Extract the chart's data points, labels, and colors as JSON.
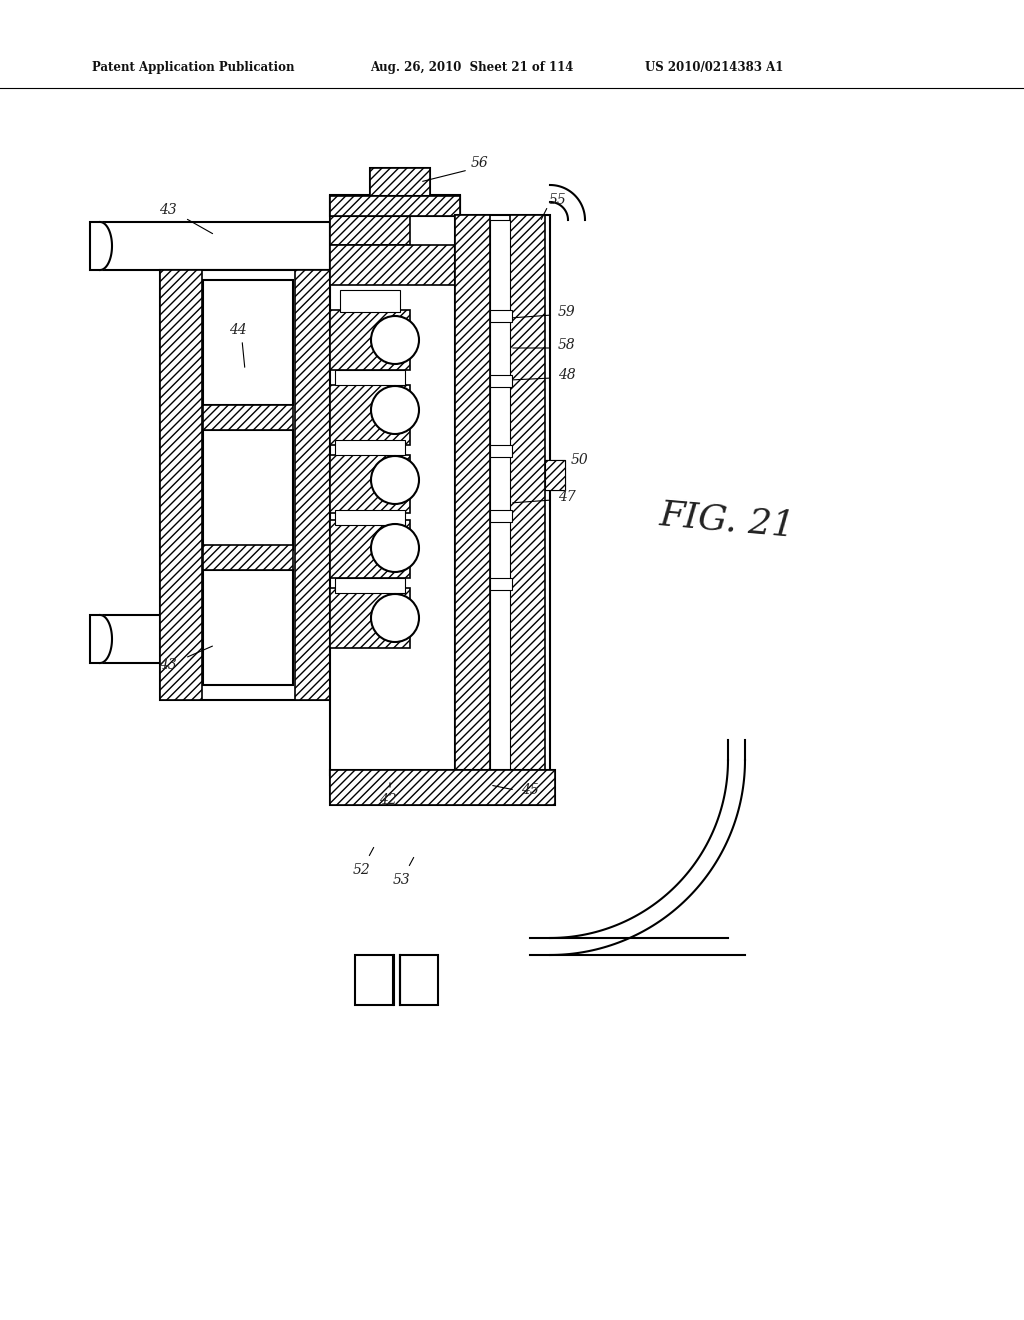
{
  "title_left": "Patent Application Publication",
  "title_mid": "Aug. 26, 2010  Sheet 21 of 114",
  "title_right": "US 2010/0214383 A1",
  "fig_label": "FIG. 21",
  "bg_color": "#ffffff"
}
